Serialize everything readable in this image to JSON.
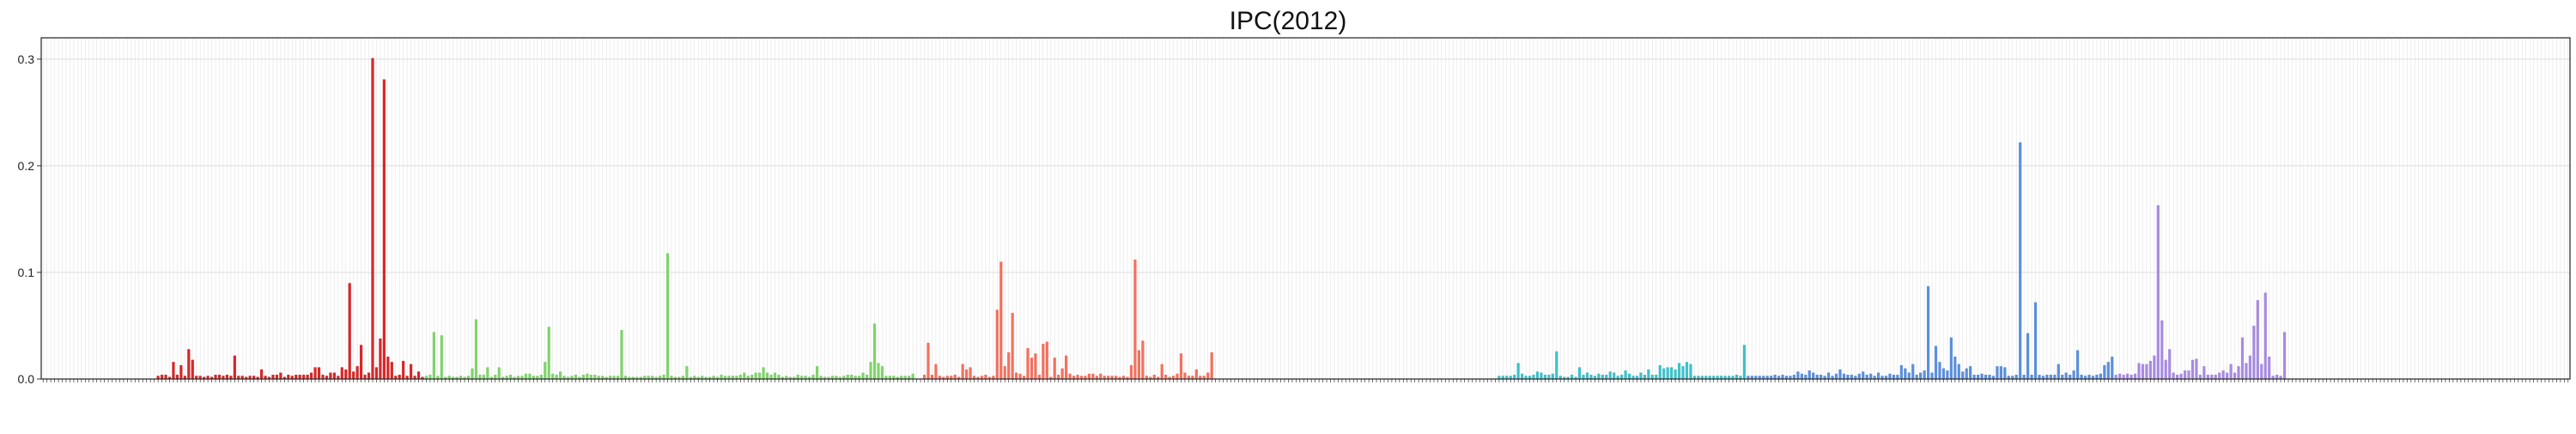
{
  "chart_data": {
    "type": "bar",
    "title": "IPC(2012)",
    "xlabel": "",
    "ylabel": "",
    "ylim": [
      0,
      0.32
    ],
    "yticks": [
      "0.0",
      "0.1",
      "0.2",
      "0.3"
    ],
    "grid": true,
    "category_count": 660,
    "series": [
      {
        "color": "#d62728",
        "start_index": 29,
        "values": [
          0.0,
          0.003,
          0.004,
          0.004,
          0.002,
          0.016,
          0.004,
          0.013,
          0.003,
          0.028,
          0.018,
          0.003,
          0.003,
          0.002,
          0.003,
          0.002,
          0.004,
          0.004,
          0.003,
          0.004,
          0.003,
          0.022,
          0.003,
          0.003,
          0.002,
          0.003,
          0.003,
          0.002,
          0.009,
          0.003,
          0.002,
          0.004,
          0.004,
          0.006,
          0.002,
          0.004,
          0.003,
          0.004,
          0.004,
          0.004,
          0.004,
          0.006,
          0.011,
          0.011,
          0.004,
          0.003,
          0.006,
          0.006,
          0.003,
          0.011,
          0.009,
          0.09,
          0.007,
          0.012,
          0.032,
          0.004,
          0.006,
          0.301,
          0.011,
          0.038,
          0.281,
          0.021,
          0.016,
          0.003,
          0.004,
          0.017,
          0.003,
          0.014,
          0.003,
          0.007,
          0.002
        ]
      },
      {
        "color": "#7fd36b",
        "start_index": 100,
        "values": [
          0.003,
          0.004,
          0.044,
          0.003,
          0.041,
          0.002,
          0.003,
          0.002,
          0.002,
          0.003,
          0.002,
          0.003,
          0.01,
          0.056,
          0.004,
          0.004,
          0.011,
          0.002,
          0.004,
          0.011,
          0.002,
          0.003,
          0.004,
          0.002,
          0.003,
          0.003,
          0.005,
          0.005,
          0.003,
          0.003,
          0.004,
          0.016,
          0.049,
          0.005,
          0.004,
          0.007,
          0.003,
          0.002,
          0.003,
          0.004,
          0.002,
          0.004,
          0.005,
          0.004,
          0.004,
          0.003,
          0.003,
          0.002,
          0.003,
          0.003,
          0.003,
          0.046,
          0.003,
          0.002,
          0.002,
          0.002,
          0.002,
          0.003,
          0.003,
          0.003,
          0.002,
          0.003,
          0.004,
          0.118,
          0.003,
          0.002,
          0.002,
          0.003,
          0.012,
          0.002,
          0.003,
          0.002,
          0.003,
          0.002,
          0.002,
          0.003,
          0.002,
          0.004,
          0.003,
          0.003,
          0.003,
          0.003,
          0.004,
          0.006,
          0.003,
          0.004,
          0.006,
          0.006,
          0.011,
          0.006,
          0.004,
          0.006,
          0.004,
          0.002,
          0.003,
          0.002,
          0.002,
          0.004,
          0.003,
          0.003,
          0.002,
          0.004,
          0.012,
          0.003,
          0.002,
          0.002,
          0.003,
          0.003,
          0.002,
          0.003,
          0.004,
          0.004,
          0.003,
          0.003,
          0.006,
          0.004,
          0.016,
          0.052,
          0.015,
          0.012,
          0.003,
          0.003,
          0.003,
          0.002,
          0.003,
          0.003,
          0.003,
          0.005
        ]
      },
      {
        "color": "#f4705e",
        "start_index": 230,
        "values": [
          0.004,
          0.034,
          0.004,
          0.014,
          0.003,
          0.002,
          0.003,
          0.003,
          0.004,
          0.002,
          0.014,
          0.009,
          0.011,
          0.003,
          0.002,
          0.003,
          0.004,
          0.002,
          0.003,
          0.065,
          0.11,
          0.012,
          0.025,
          0.062,
          0.006,
          0.005,
          0.003,
          0.029,
          0.02,
          0.024,
          0.004,
          0.033,
          0.035,
          0.002,
          0.02,
          0.004,
          0.01,
          0.022,
          0.005,
          0.003,
          0.004,
          0.003,
          0.003,
          0.005,
          0.005,
          0.003,
          0.005,
          0.003,
          0.003,
          0.003,
          0.003,
          0.002,
          0.003,
          0.002,
          0.013,
          0.112,
          0.027,
          0.036,
          0.003,
          0.002,
          0.004,
          0.002,
          0.014,
          0.004,
          0.002,
          0.003,
          0.005,
          0.024,
          0.006,
          0.003,
          0.003,
          0.009,
          0.003,
          0.003,
          0.006,
          0.025
        ]
      },
      {
        "color": "#3ec0c9",
        "start_index": 380,
        "values": [
          0.003,
          0.003,
          0.003,
          0.003,
          0.004,
          0.015,
          0.005,
          0.003,
          0.003,
          0.004,
          0.007,
          0.006,
          0.004,
          0.004,
          0.005,
          0.026,
          0.003,
          0.002,
          0.002,
          0.004,
          0.002,
          0.011,
          0.004,
          0.006,
          0.004,
          0.003,
          0.005,
          0.004,
          0.004,
          0.007,
          0.006,
          0.003,
          0.004,
          0.008,
          0.005,
          0.003,
          0.003,
          0.006,
          0.004,
          0.009,
          0.004,
          0.004,
          0.013,
          0.01,
          0.011,
          0.011,
          0.009,
          0.015,
          0.012,
          0.016,
          0.014,
          0.003,
          0.003,
          0.003,
          0.003,
          0.003,
          0.003,
          0.003,
          0.003,
          0.003,
          0.003,
          0.003,
          0.004,
          0.003,
          0.032
        ]
      },
      {
        "color": "#5b8fdb",
        "start_index": 445,
        "values": [
          0.003,
          0.003,
          0.003,
          0.003,
          0.003,
          0.003,
          0.003,
          0.004,
          0.003,
          0.004,
          0.003,
          0.003,
          0.004,
          0.007,
          0.005,
          0.004,
          0.008,
          0.006,
          0.004,
          0.004,
          0.003,
          0.006,
          0.003,
          0.005,
          0.009,
          0.005,
          0.004,
          0.004,
          0.003,
          0.005,
          0.007,
          0.004,
          0.005,
          0.003,
          0.006,
          0.003,
          0.003,
          0.005,
          0.004,
          0.004,
          0.013,
          0.01,
          0.006,
          0.014,
          0.004,
          0.006,
          0.008,
          0.087,
          0.006,
          0.031,
          0.016,
          0.01,
          0.008,
          0.039,
          0.021,
          0.014,
          0.007,
          0.01,
          0.012,
          0.004,
          0.004,
          0.005,
          0.004,
          0.004,
          0.003,
          0.012,
          0.012,
          0.011,
          0.003,
          0.003,
          0.004,
          0.222,
          0.004,
          0.043,
          0.004,
          0.072,
          0.004,
          0.003,
          0.004,
          0.004,
          0.004,
          0.014,
          0.004,
          0.006,
          0.004,
          0.008,
          0.027,
          0.004,
          0.003,
          0.004,
          0.003,
          0.004,
          0.005,
          0.013,
          0.016,
          0.021
        ]
      },
      {
        "color": "#a78be0",
        "start_index": 541,
        "values": [
          0.004,
          0.005,
          0.004,
          0.005,
          0.004,
          0.005,
          0.015,
          0.014,
          0.014,
          0.017,
          0.022,
          0.163,
          0.055,
          0.018,
          0.028,
          0.006,
          0.004,
          0.005,
          0.008,
          0.008,
          0.018,
          0.019,
          0.004,
          0.012,
          0.004,
          0.004,
          0.004,
          0.006,
          0.008,
          0.006,
          0.014,
          0.006,
          0.012,
          0.039,
          0.015,
          0.022,
          0.05,
          0.074,
          0.014,
          0.081,
          0.021,
          0.003,
          0.004,
          0.003,
          0.044
        ]
      }
    ]
  }
}
